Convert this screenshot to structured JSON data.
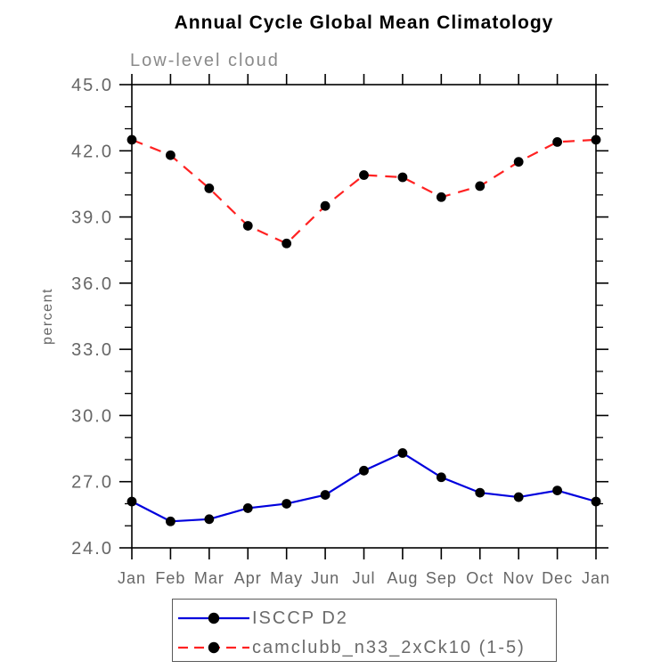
{
  "window": {
    "title": "Annual Cycle Global Mean Climatology"
  },
  "header": {
    "title": "Annual Cycle Global Mean Climatology",
    "subtitle": "Low-level cloud"
  },
  "colors": {
    "series_blue": "#0000dd",
    "series_red": "#ff2222",
    "marker_black": "#000000",
    "axis_line": "#000000",
    "axis_text_gray": "#666666",
    "subtitle_gray": "#8a8a8a",
    "legend_border_gray": "#5a5a5a",
    "background": "#ffffff"
  },
  "chart_data": {
    "type": "line",
    "title": "Annual Cycle Global Mean Climatology",
    "subtitle": "Low-level cloud",
    "xlabel": "",
    "ylabel": "percent",
    "categories": [
      "Jan",
      "Feb",
      "Mar",
      "Apr",
      "May",
      "Jun",
      "Jul",
      "Aug",
      "Sep",
      "Oct",
      "Nov",
      "Dec",
      "Jan"
    ],
    "ylim": [
      24.0,
      45.0
    ],
    "y_major_ticks": [
      24.0,
      27.0,
      30.0,
      33.0,
      36.0,
      39.0,
      42.0,
      45.0
    ],
    "y_tick_labels": [
      "24.0",
      "27.0",
      "30.0",
      "33.0",
      "36.0",
      "39.0",
      "42.0",
      "45.0"
    ],
    "y_minor_step": 1.0,
    "grid": false,
    "ticks_outward_all_sides": true,
    "legend_position": "bottom",
    "series": [
      {
        "name": "ISCCP D2",
        "line_style": "solid",
        "color": "#0000dd",
        "marker": "circle",
        "marker_color": "#000000",
        "values": [
          26.1,
          25.2,
          25.3,
          25.8,
          26.0,
          26.4,
          27.5,
          28.3,
          27.2,
          26.5,
          26.3,
          26.6,
          26.1
        ]
      },
      {
        "name": "camclubb_n33_2xCk10 (1-5)",
        "line_style": "dashed",
        "color": "#ff2222",
        "marker": "circle",
        "marker_color": "#000000",
        "values": [
          42.5,
          41.8,
          40.3,
          38.6,
          37.8,
          39.5,
          40.9,
          40.8,
          39.9,
          40.4,
          41.5,
          42.4,
          42.5
        ]
      }
    ]
  },
  "legend": {
    "items": [
      {
        "label": "ISCCP D2"
      },
      {
        "label": "camclubb_n33_2xCk10 (1-5)"
      }
    ]
  }
}
